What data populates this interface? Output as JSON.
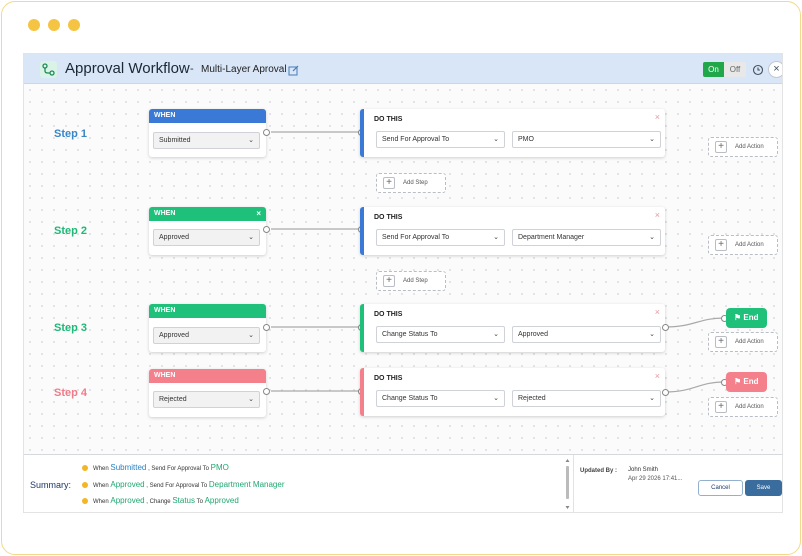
{
  "window": {
    "title": "Approval Workflow",
    "separator": "-",
    "subtitle": "Multi-Layer Aproval",
    "toggle": {
      "on_label": "On",
      "off_label": "Off",
      "state": "on"
    },
    "icons": {
      "app": "workflow-icon",
      "edit": "edit-icon",
      "history": "history-icon",
      "close": "close-icon"
    }
  },
  "colors": {
    "blue": "#3a7ad6",
    "green": "#1fc17a",
    "pink": "#f4808c",
    "end_green": "#1fc17a",
    "end_pink": "#f4808c",
    "step_blue": "#3a86c8",
    "step_green": "#1fb877",
    "step_pink": "#f07b89"
  },
  "steps": [
    {
      "label": "Step 1",
      "when_header": "WHEN",
      "when_value": "Submitted",
      "do_title": "DO THIS",
      "action": "Send For Approval To",
      "target": "PMO",
      "add_action": "Add Action"
    },
    {
      "label": "Step 2",
      "when_header": "WHEN",
      "when_value": "Approved",
      "do_title": "DO THIS",
      "action": "Send For Approval To",
      "target": "Department Manager",
      "add_action": "Add Action"
    },
    {
      "label": "Step 3",
      "when_header": "WHEN",
      "when_value": "Approved",
      "do_title": "DO THIS",
      "action": "Change Status To",
      "target": "Approved",
      "add_action": "Add Action",
      "end_label": "End"
    },
    {
      "label": "Step 4",
      "when_header": "WHEN",
      "when_value": "Rejected",
      "do_title": "DO THIS",
      "action": "Change Status To",
      "target": "Rejected",
      "add_action": "Add Action",
      "end_label": "End"
    }
  ],
  "add_step_label": "Add Step",
  "close_glyph": "×",
  "summary": {
    "label": "Summary:",
    "lines": [
      {
        "w": "When",
        "trigger": "Submitted",
        "mid": ", Send For Approval To",
        "target": "PMO"
      },
      {
        "w": "When",
        "trigger": "Approved",
        "mid": ", Send For Approval To",
        "target": "Department Manager"
      },
      {
        "w": "When",
        "trigger": "Approved",
        "mid": ", Change",
        "field": "Status",
        "to": "To",
        "target": "Approved"
      }
    ]
  },
  "updated": {
    "label": "Updated By :",
    "name": "John Smith",
    "date": "Apr 29 2026 17:41..."
  },
  "buttons": {
    "cancel": "Cancel",
    "save": "Save"
  }
}
